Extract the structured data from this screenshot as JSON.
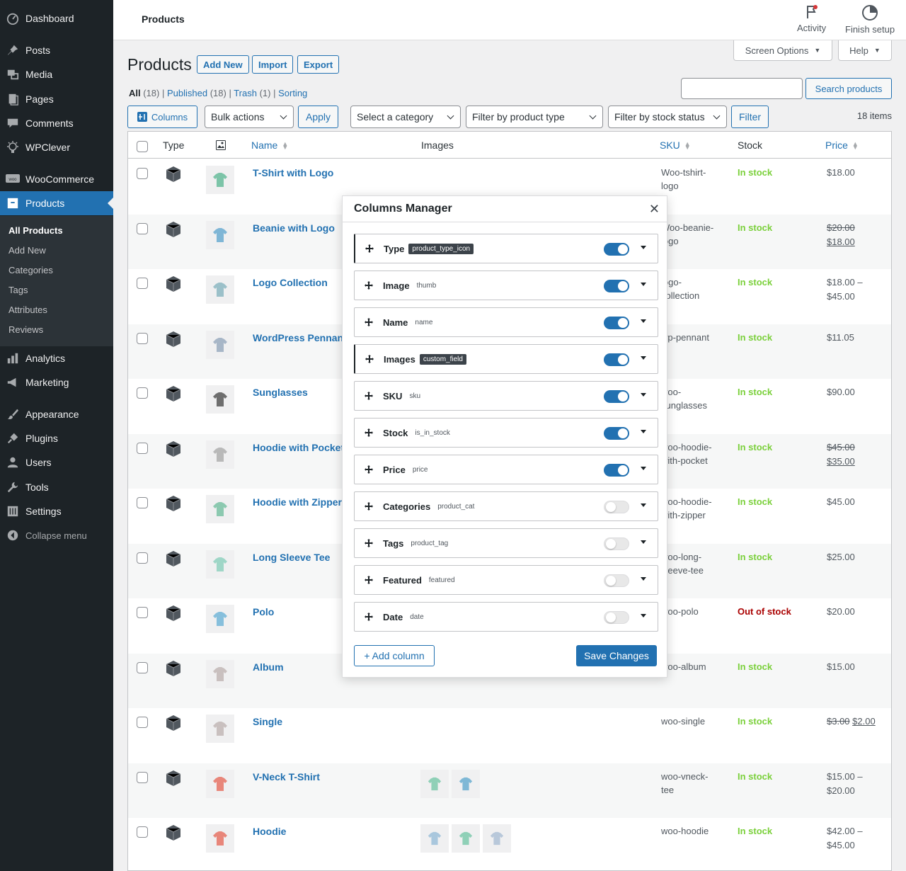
{
  "sidebar": {
    "items": [
      {
        "label": "Dashboard",
        "icon": "dashboard-icon"
      },
      {
        "label": "Posts",
        "icon": "pin-icon"
      },
      {
        "label": "Media",
        "icon": "media-icon"
      },
      {
        "label": "Pages",
        "icon": "pages-icon"
      },
      {
        "label": "Comments",
        "icon": "comment-icon"
      },
      {
        "label": "WPClever",
        "icon": "lightbulb-icon"
      },
      {
        "label": "WooCommerce",
        "icon": "woo-icon"
      },
      {
        "label": "Products",
        "icon": "archive-icon"
      },
      {
        "label": "Analytics",
        "icon": "bar-chart-icon"
      },
      {
        "label": "Marketing",
        "icon": "megaphone-icon"
      },
      {
        "label": "Appearance",
        "icon": "brush-icon"
      },
      {
        "label": "Plugins",
        "icon": "plugin-icon"
      },
      {
        "label": "Users",
        "icon": "user-icon"
      },
      {
        "label": "Tools",
        "icon": "wrench-icon"
      },
      {
        "label": "Settings",
        "icon": "settings-icon"
      }
    ],
    "submenu": [
      "All Products",
      "Add New",
      "Categories",
      "Tags",
      "Attributes",
      "Reviews"
    ],
    "collapse": "Collapse menu"
  },
  "topbar": {
    "title": "Products",
    "activity": "Activity",
    "finish_setup": "Finish setup",
    "screen_options": "Screen Options",
    "help": "Help"
  },
  "page": {
    "heading": "Products",
    "add_new": "Add New",
    "import": "Import",
    "export": "Export",
    "views": {
      "all": "All",
      "all_count": "(18)",
      "published": "Published",
      "published_count": "(18)",
      "trash": "Trash",
      "trash_count": "(1)",
      "sorting": "Sorting"
    },
    "search_button": "Search products",
    "columns_button": "Columns",
    "bulk_actions": "Bulk actions",
    "apply": "Apply",
    "category_filter": "Select a category",
    "type_filter": "Filter by product type",
    "stock_filter": "Filter by stock status",
    "filter": "Filter",
    "items_count": "18 items"
  },
  "table": {
    "headers": {
      "type": "Type",
      "name": "Name",
      "images": "Images",
      "sku": "SKU",
      "stock": "Stock",
      "price": "Price"
    },
    "rows": [
      {
        "name": "T-Shirt with Logo",
        "sku1": "Woo-tshirt-",
        "sku2": "logo",
        "stock": "In stock",
        "price1": "$18.00",
        "price2": ""
      },
      {
        "name": "Beanie with Logo",
        "sku1": "Woo-beanie-",
        "sku2": "logo",
        "stock": "In stock",
        "price_old": "$20.00",
        "price_new": "$18.00"
      },
      {
        "name": "Logo Collection",
        "sku1": "logo-",
        "sku2": "collection",
        "stock": "In stock",
        "price1": "$18.00 –",
        "price2": "$45.00"
      },
      {
        "name": "WordPress Pennant",
        "sku1": "wp-pennant",
        "sku2": "",
        "stock": "In stock",
        "price1": "$11.05",
        "price2": ""
      },
      {
        "name": "Sunglasses",
        "sku1": "woo-",
        "sku2": "sunglasses",
        "stock": "In stock",
        "price1": "$90.00",
        "price2": ""
      },
      {
        "name": "Hoodie with Pocket",
        "sku1": "woo-hoodie-",
        "sku2": "with-pocket",
        "stock": "In stock",
        "price_old": "$45.00",
        "price_new": "$35.00"
      },
      {
        "name": "Hoodie with Zipper",
        "sku1": "woo-hoodie-",
        "sku2": "with-zipper",
        "stock": "In stock",
        "price1": "$45.00",
        "price2": ""
      },
      {
        "name": "Long Sleeve Tee",
        "sku1": "woo-long-",
        "sku2": "sleeve-tee",
        "stock": "In stock",
        "price1": "$25.00",
        "price2": ""
      },
      {
        "name": "Polo",
        "sku1": "woo-polo",
        "sku2": "",
        "stock": "Out of stock",
        "price1": "$20.00",
        "price2": ""
      },
      {
        "name": "Album",
        "sku1": "woo-album",
        "sku2": "",
        "stock": "In stock",
        "price1": "$15.00",
        "price2": ""
      },
      {
        "name": "Single",
        "sku1": "woo-single",
        "sku2": "",
        "stock": "In stock",
        "price_old": "$3.00",
        "price_new": "$2.00"
      },
      {
        "name": "V-Neck T-Shirt",
        "sku1": "woo-vneck-",
        "sku2": "tee",
        "stock": "In stock",
        "price1": "$15.00 –",
        "price2": "$20.00"
      },
      {
        "name": "Hoodie",
        "sku1": "woo-hoodie",
        "sku2": "",
        "stock": "In stock",
        "price1": "$42.00 –",
        "price2": "$45.00"
      }
    ]
  },
  "modal": {
    "title": "Columns Manager",
    "columns": [
      {
        "label": "Type",
        "key": "product_type_icon",
        "enabled": true
      },
      {
        "label": "Image",
        "key": "thumb",
        "enabled": true
      },
      {
        "label": "Name",
        "key": "name",
        "enabled": true
      },
      {
        "label": "Images",
        "key": "custom_field",
        "enabled": true
      },
      {
        "label": "SKU",
        "key": "sku",
        "enabled": true
      },
      {
        "label": "Stock",
        "key": "is_in_stock",
        "enabled": true
      },
      {
        "label": "Price",
        "key": "price",
        "enabled": true
      },
      {
        "label": "Categories",
        "key": "product_cat",
        "enabled": false
      },
      {
        "label": "Tags",
        "key": "product_tag",
        "enabled": false
      },
      {
        "label": "Featured",
        "key": "featured",
        "enabled": false
      },
      {
        "label": "Date",
        "key": "date",
        "enabled": false
      }
    ],
    "add_column": "+ Add column",
    "save": "Save Changes"
  },
  "colors": {
    "accent": "#2271b1",
    "sidebar": "#1d2327",
    "in_stock": "#7ad03a",
    "out_of_stock": "#aa0000"
  }
}
